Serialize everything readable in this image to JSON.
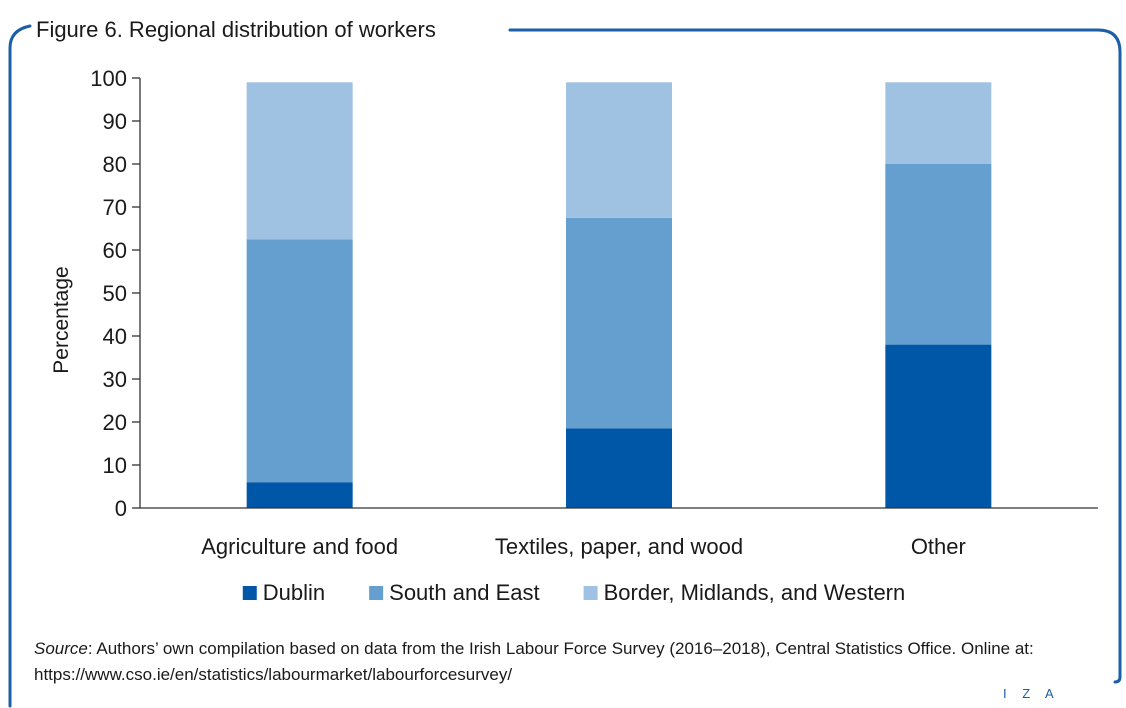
{
  "figure": {
    "title": "Figure 6. Regional distribution of workers",
    "brand": "I Z A"
  },
  "source": {
    "label": "Source",
    "text": ": Authors’ own compilation based on data from the Irish Labour Force Survey (2016–2018), Central Statistics Office. Online at: https://www.cso.ie/en/statistics/labourmarket/labourforcesurvey/"
  },
  "colors": {
    "frame": "#1a5fa8",
    "axis": "#333333"
  },
  "chart_data": {
    "type": "bar",
    "stacked": true,
    "title": "",
    "xlabel": "",
    "ylabel": "Percentage",
    "ylim": [
      0,
      100
    ],
    "yticks": [
      0,
      10,
      20,
      30,
      40,
      50,
      60,
      70,
      80,
      90,
      100
    ],
    "grid": false,
    "legend_position": "bottom",
    "categories": [
      "Agriculture and food",
      "Textiles, paper, and wood",
      "Other"
    ],
    "series": [
      {
        "name": "Dublin",
        "color": "#0057a8",
        "values": [
          6,
          18.5,
          38
        ]
      },
      {
        "name": "South and East",
        "color": "#659fcf",
        "values": [
          56.5,
          49,
          42
        ]
      },
      {
        "name": "Border, Midlands, and Western",
        "color": "#9fc2e2",
        "values": [
          36.5,
          31.5,
          19
        ]
      }
    ]
  }
}
